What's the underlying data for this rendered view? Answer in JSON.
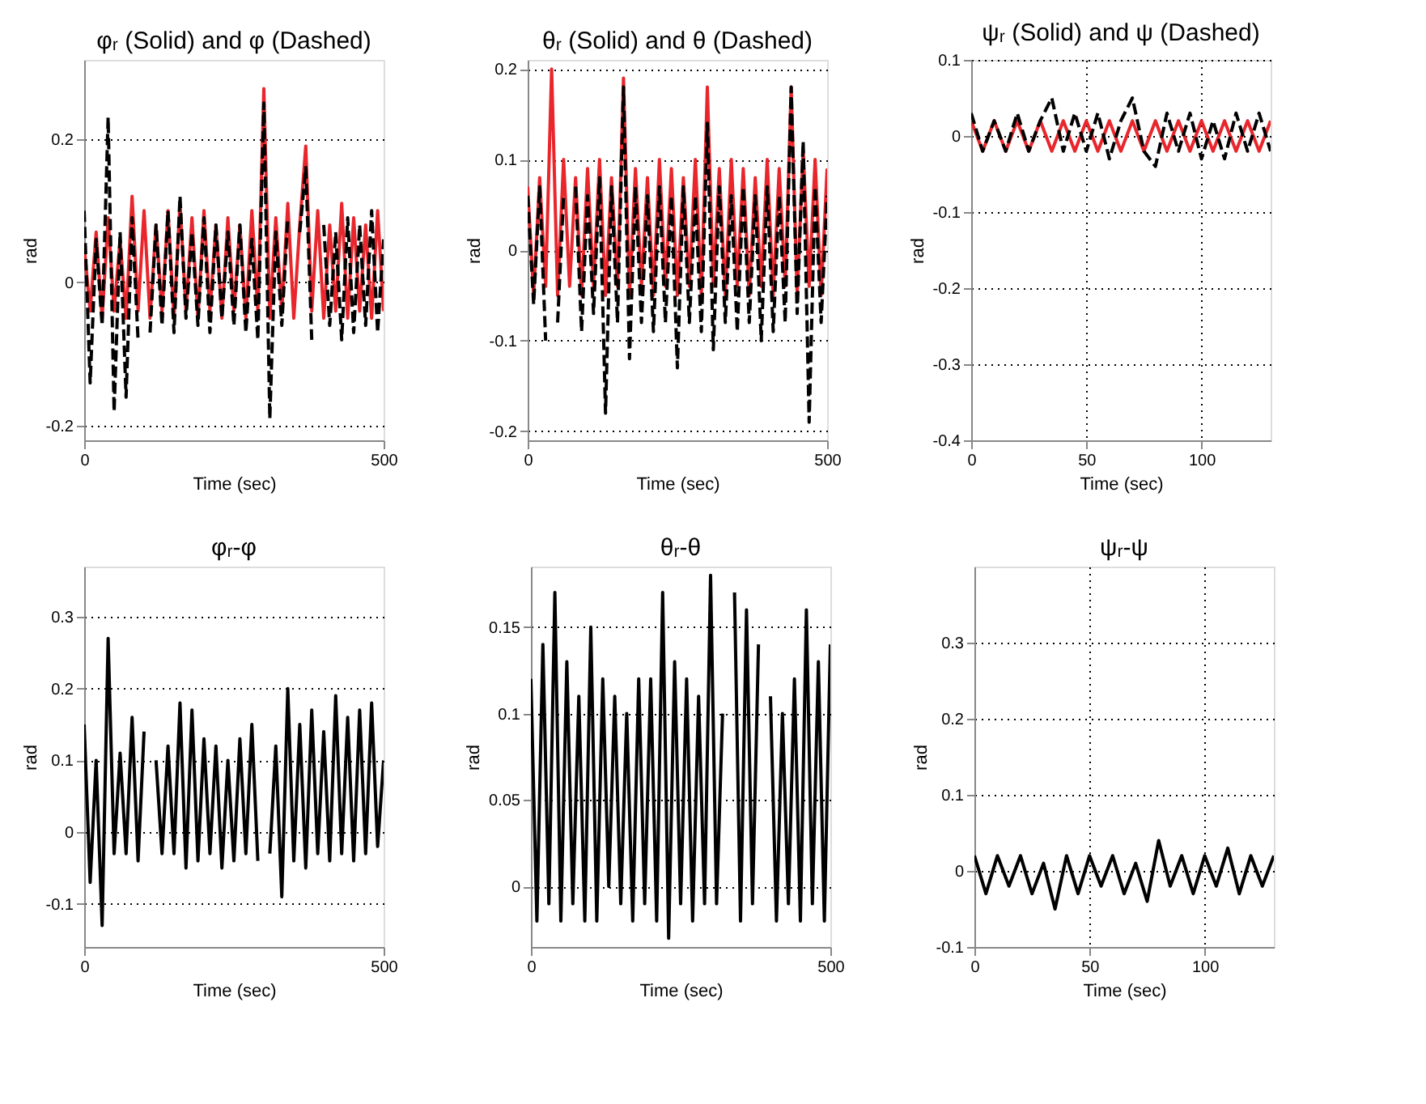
{
  "chart_data": [
    {
      "type": "line",
      "title": "φᵣ (Solid) and φ (Dashed)",
      "xlabel": "Time (sec)",
      "ylabel": "rad",
      "xlim": [
        0,
        500
      ],
      "xticks": [
        0,
        500
      ],
      "ylim": [
        -0.22,
        0.31
      ],
      "yticks": [
        -0.2,
        0,
        0.2
      ],
      "grid": "y",
      "x": [
        0,
        10,
        20,
        30,
        40,
        50,
        60,
        70,
        80,
        90,
        100,
        110,
        120,
        130,
        140,
        150,
        160,
        170,
        180,
        190,
        200,
        210,
        220,
        230,
        240,
        250,
        260,
        270,
        280,
        290,
        300,
        310,
        320,
        330,
        340,
        350,
        360,
        370,
        380,
        390,
        400,
        410,
        420,
        430,
        440,
        450,
        460,
        470,
        480,
        490,
        500
      ],
      "series": [
        {
          "color": "#e8262c",
          "line_style": "solid",
          "values": [
            0.05,
            -0.04,
            0.07,
            -0.05,
            0.09,
            -0.04,
            0.06,
            -0.05,
            0.12,
            -0.04,
            0.1,
            -0.05,
            0.08,
            -0.04,
            0.1,
            -0.05,
            0.11,
            -0.04,
            0.09,
            -0.05,
            0.1,
            -0.04,
            0.08,
            -0.05,
            0.09,
            -0.04,
            0.08,
            -0.05,
            0.1,
            -0.04,
            0.27,
            -0.05,
            0.09,
            -0.04,
            0.11,
            -0.05,
            0.08,
            0.19,
            -0.04,
            0.1,
            -0.05,
            0.08,
            -0.04,
            0.11,
            -0.05,
            0.09,
            -0.04,
            0.08,
            -0.05,
            0.1,
            -0.04
          ]
        },
        {
          "color": "#000000",
          "line_style": "dashed",
          "values": [
            0.1,
            -0.14,
            0.06,
            -0.06,
            0.23,
            -0.18,
            0.07,
            -0.16,
            0.09,
            -0.08,
            null,
            -0.07,
            0.08,
            -0.06,
            0.1,
            -0.07,
            0.12,
            -0.05,
            0.07,
            -0.06,
            0.09,
            -0.07,
            0.08,
            -0.05,
            0.07,
            -0.06,
            0.08,
            -0.07,
            0.06,
            -0.08,
            0.25,
            -0.19,
            0.07,
            -0.06,
            0.09,
            null,
            0.07,
            0.16,
            -0.08,
            null,
            0.08,
            -0.06,
            0.07,
            -0.08,
            0.09,
            -0.07,
            0.08,
            -0.06,
            0.1,
            -0.07,
            0.06
          ]
        }
      ]
    },
    {
      "type": "line",
      "title": "θᵣ (Solid) and θ (Dashed)",
      "xlabel": "Time (sec)",
      "ylabel": "rad",
      "xlim": [
        0,
        500
      ],
      "xticks": [
        0,
        500
      ],
      "ylim": [
        -0.21,
        0.21
      ],
      "yticks": [
        -0.2,
        -0.1,
        0,
        0.1,
        0.2
      ],
      "grid": "y",
      "x": [
        0,
        10,
        20,
        30,
        40,
        50,
        60,
        70,
        80,
        90,
        100,
        110,
        120,
        130,
        140,
        150,
        160,
        170,
        180,
        190,
        200,
        210,
        220,
        230,
        240,
        250,
        260,
        270,
        280,
        290,
        300,
        310,
        320,
        330,
        340,
        350,
        360,
        370,
        380,
        390,
        400,
        410,
        420,
        430,
        440,
        450,
        460,
        470,
        480,
        490,
        500
      ],
      "series": [
        {
          "color": "#e8262c",
          "line_style": "solid",
          "values": [
            0.07,
            -0.05,
            0.08,
            -0.04,
            0.2,
            -0.05,
            0.1,
            -0.04,
            0.08,
            -0.05,
            0.09,
            -0.04,
            0.1,
            -0.05,
            0.08,
            -0.04,
            0.19,
            -0.05,
            0.09,
            -0.04,
            0.08,
            -0.05,
            0.1,
            -0.04,
            0.09,
            -0.05,
            0.08,
            -0.04,
            0.1,
            -0.05,
            0.18,
            -0.04,
            0.09,
            -0.05,
            0.1,
            -0.04,
            0.09,
            -0.05,
            0.08,
            -0.04,
            0.1,
            -0.05,
            0.09,
            -0.04,
            0.18,
            -0.05,
            0.11,
            -0.04,
            0.1,
            -0.05,
            0.09
          ]
        },
        {
          "color": "#000000",
          "line_style": "dashed",
          "values": [
            0.06,
            -0.06,
            0.07,
            -0.1,
            null,
            -0.08,
            0.06,
            null,
            0.07,
            -0.09,
            0.06,
            -0.07,
            0.08,
            -0.18,
            0.07,
            -0.08,
            0.18,
            -0.12,
            0.07,
            -0.08,
            0.06,
            -0.09,
            0.07,
            -0.08,
            0.06,
            -0.13,
            0.07,
            -0.08,
            0.06,
            -0.09,
            0.14,
            -0.11,
            0.07,
            -0.08,
            0.06,
            -0.09,
            0.07,
            -0.08,
            0.06,
            -0.1,
            0.07,
            -0.09,
            0.06,
            -0.08,
            0.18,
            -0.07,
            0.12,
            -0.19,
            0.07,
            -0.08,
            0.06
          ]
        }
      ]
    },
    {
      "type": "line",
      "title": "ψᵣ (Solid) and ψ (Dashed)",
      "xlabel": "Time (sec)",
      "ylabel": "rad",
      "xlim": [
        0,
        130
      ],
      "xticks": [
        0,
        50,
        100
      ],
      "ylim": [
        -0.4,
        0.1
      ],
      "yticks": [
        -0.4,
        -0.3,
        -0.2,
        -0.1,
        0,
        0.1
      ],
      "grid": true,
      "x": [
        0,
        5,
        10,
        15,
        20,
        25,
        30,
        35,
        40,
        45,
        50,
        55,
        60,
        65,
        70,
        75,
        80,
        85,
        90,
        95,
        100,
        105,
        110,
        115,
        120,
        125,
        130
      ],
      "series": [
        {
          "color": "#e8262c",
          "line_style": "solid",
          "values": [
            0.02,
            -0.02,
            0.02,
            -0.02,
            0.02,
            -0.02,
            0.02,
            -0.02,
            0.02,
            -0.02,
            0.02,
            -0.02,
            0.02,
            -0.02,
            0.02,
            -0.02,
            0.02,
            -0.02,
            0.02,
            -0.02,
            0.02,
            -0.02,
            0.02,
            -0.02,
            0.02,
            -0.02,
            0.02
          ]
        },
        {
          "color": "#000000",
          "line_style": "dashed",
          "values": [
            0.03,
            -0.02,
            0.02,
            -0.02,
            0.03,
            -0.02,
            0.02,
            0.05,
            -0.02,
            0.03,
            -0.02,
            0.03,
            -0.03,
            0.02,
            0.05,
            -0.02,
            -0.04,
            0.03,
            -0.02,
            0.03,
            -0.03,
            0.02,
            -0.03,
            0.03,
            -0.02,
            0.03,
            -0.02
          ]
        }
      ]
    },
    {
      "type": "line",
      "title": "φᵣ-φ",
      "xlabel": "Time (sec)",
      "ylabel": "rad",
      "xlim": [
        0,
        500
      ],
      "xticks": [
        0,
        500
      ],
      "ylim": [
        -0.16,
        0.37
      ],
      "yticks": [
        -0.1,
        0,
        0.1,
        0.2,
        0.3
      ],
      "grid": "y",
      "x": [
        0,
        10,
        20,
        30,
        40,
        50,
        60,
        70,
        80,
        90,
        100,
        110,
        120,
        130,
        140,
        150,
        160,
        170,
        180,
        190,
        200,
        210,
        220,
        230,
        240,
        250,
        260,
        270,
        280,
        290,
        300,
        310,
        320,
        330,
        340,
        350,
        360,
        370,
        380,
        390,
        400,
        410,
        420,
        430,
        440,
        450,
        460,
        470,
        480,
        490,
        500
      ],
      "series": [
        {
          "color": "#000000",
          "line_style": "solid",
          "values": [
            0.15,
            -0.07,
            0.1,
            -0.13,
            0.27,
            -0.03,
            0.11,
            -0.03,
            0.16,
            -0.04,
            0.14,
            null,
            0.1,
            -0.03,
            0.12,
            -0.03,
            0.18,
            -0.05,
            0.17,
            -0.04,
            0.13,
            -0.03,
            0.12,
            -0.05,
            0.1,
            -0.04,
            0.13,
            -0.03,
            0.15,
            -0.04,
            null,
            -0.03,
            0.12,
            -0.09,
            0.2,
            -0.04,
            0.15,
            -0.05,
            0.17,
            -0.03,
            0.14,
            -0.04,
            0.19,
            -0.03,
            0.16,
            -0.04,
            0.17,
            -0.03,
            0.18,
            -0.02,
            0.1
          ]
        }
      ]
    },
    {
      "type": "line",
      "title": "θᵣ-θ",
      "xlabel": "Time (sec)",
      "ylabel": "rad",
      "xlim": [
        0,
        500
      ],
      "xticks": [
        0,
        500
      ],
      "ylim": [
        -0.035,
        0.185
      ],
      "yticks": [
        0,
        0.05,
        0.1,
        0.15
      ],
      "grid": "y",
      "x": [
        0,
        10,
        20,
        30,
        40,
        50,
        60,
        70,
        80,
        90,
        100,
        110,
        120,
        130,
        140,
        150,
        160,
        170,
        180,
        190,
        200,
        210,
        220,
        230,
        240,
        250,
        260,
        270,
        280,
        290,
        300,
        310,
        320,
        330,
        340,
        350,
        360,
        370,
        380,
        390,
        400,
        410,
        420,
        430,
        440,
        450,
        460,
        470,
        480,
        490,
        500
      ],
      "series": [
        {
          "color": "#000000",
          "line_style": "solid",
          "values": [
            0.12,
            -0.02,
            0.14,
            -0.01,
            0.17,
            -0.02,
            0.13,
            -0.01,
            0.11,
            -0.02,
            0.15,
            -0.02,
            0.12,
            0.0,
            0.11,
            -0.01,
            0.1,
            -0.02,
            0.12,
            -0.01,
            0.12,
            -0.02,
            0.17,
            -0.03,
            0.13,
            -0.01,
            0.12,
            -0.02,
            0.11,
            -0.01,
            0.18,
            -0.01,
            0.1,
            null,
            0.17,
            -0.02,
            0.16,
            -0.01,
            0.14,
            null,
            0.11,
            -0.02,
            0.1,
            -0.01,
            0.12,
            -0.02,
            0.16,
            -0.01,
            0.13,
            -0.02,
            0.14
          ]
        }
      ]
    },
    {
      "type": "line",
      "title": "ψᵣ-ψ",
      "xlabel": "Time (sec)",
      "ylabel": "rad",
      "xlim": [
        0,
        130
      ],
      "xticks": [
        0,
        50,
        100
      ],
      "ylim": [
        -0.1,
        0.4
      ],
      "yticks": [
        -0.1,
        0,
        0.1,
        0.2,
        0.3
      ],
      "grid": true,
      "x": [
        0,
        5,
        10,
        15,
        20,
        25,
        30,
        35,
        40,
        45,
        50,
        55,
        60,
        65,
        70,
        75,
        80,
        85,
        90,
        95,
        100,
        105,
        110,
        115,
        120,
        125,
        130
      ],
      "series": [
        {
          "color": "#000000",
          "line_style": "solid",
          "values": [
            0.02,
            -0.03,
            0.02,
            -0.02,
            0.02,
            -0.03,
            0.01,
            -0.05,
            0.02,
            -0.03,
            0.02,
            -0.02,
            0.02,
            -0.03,
            0.01,
            -0.04,
            0.04,
            -0.02,
            0.02,
            -0.03,
            0.02,
            -0.02,
            0.03,
            -0.03,
            0.02,
            -0.02,
            0.02
          ]
        }
      ]
    }
  ]
}
